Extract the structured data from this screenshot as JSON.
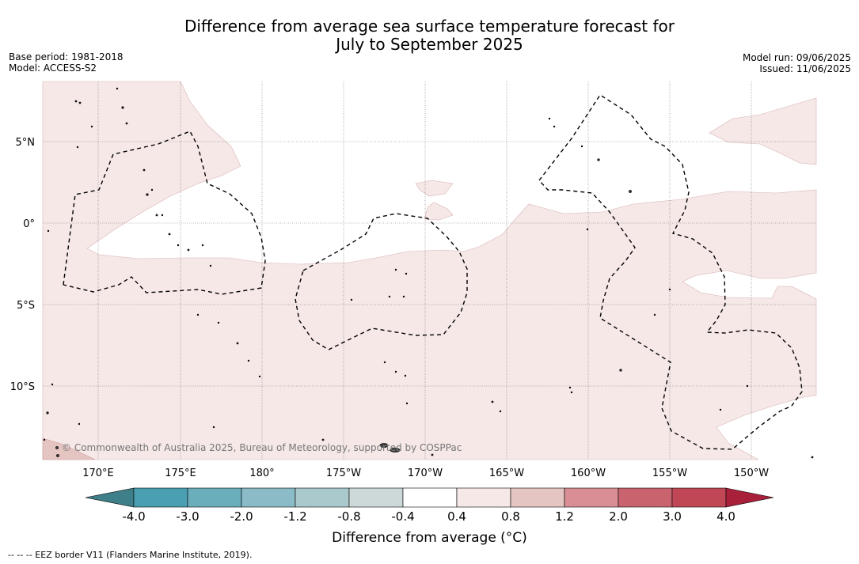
{
  "title_line1": "Difference from average sea surface temperature forecast for",
  "title_line2": "July to September 2025",
  "base_period": "Base period: 1981-2018",
  "model": "Model: ACCESS-S2",
  "model_run": "Model run: 09/06/2025",
  "issued": "Issued: 11/06/2025",
  "copyright": "© Commonwealth of Australia 2025, Bureau of Meteorology, supported by COSPPac",
  "lon_labels": [
    "170°E",
    "175°E",
    "180°",
    "175°W",
    "170°W",
    "165°W",
    "160°W",
    "155°W",
    "150°W"
  ],
  "lat_labels": [
    "5°N",
    "0°",
    "5°S",
    "10°S"
  ],
  "colorbar": {
    "title": "Difference from average ($^\\circ$C)",
    "title_display": "Difference from average (°C)",
    "tick_labels": [
      "-4.0",
      "-3.0",
      "-2.0",
      "-1.2",
      "-0.8",
      "-0.4",
      "0.4",
      "0.8",
      "1.2",
      "2.0",
      "3.0",
      "4.0"
    ],
    "colors": [
      "#3f7f8a",
      "#4aa0b2",
      "#6aaebc",
      "#8bbbc6",
      "#a9c9cd",
      "#cdd9d9",
      "#ffffff",
      "#f5e8e7",
      "#e5c5c1",
      "#d88e94",
      "#c9646f",
      "#bf4756",
      "#a8203a"
    ]
  },
  "footnote": "--  --  -- EEZ border V11 (Flanders Marine Institute, 2019)."
}
